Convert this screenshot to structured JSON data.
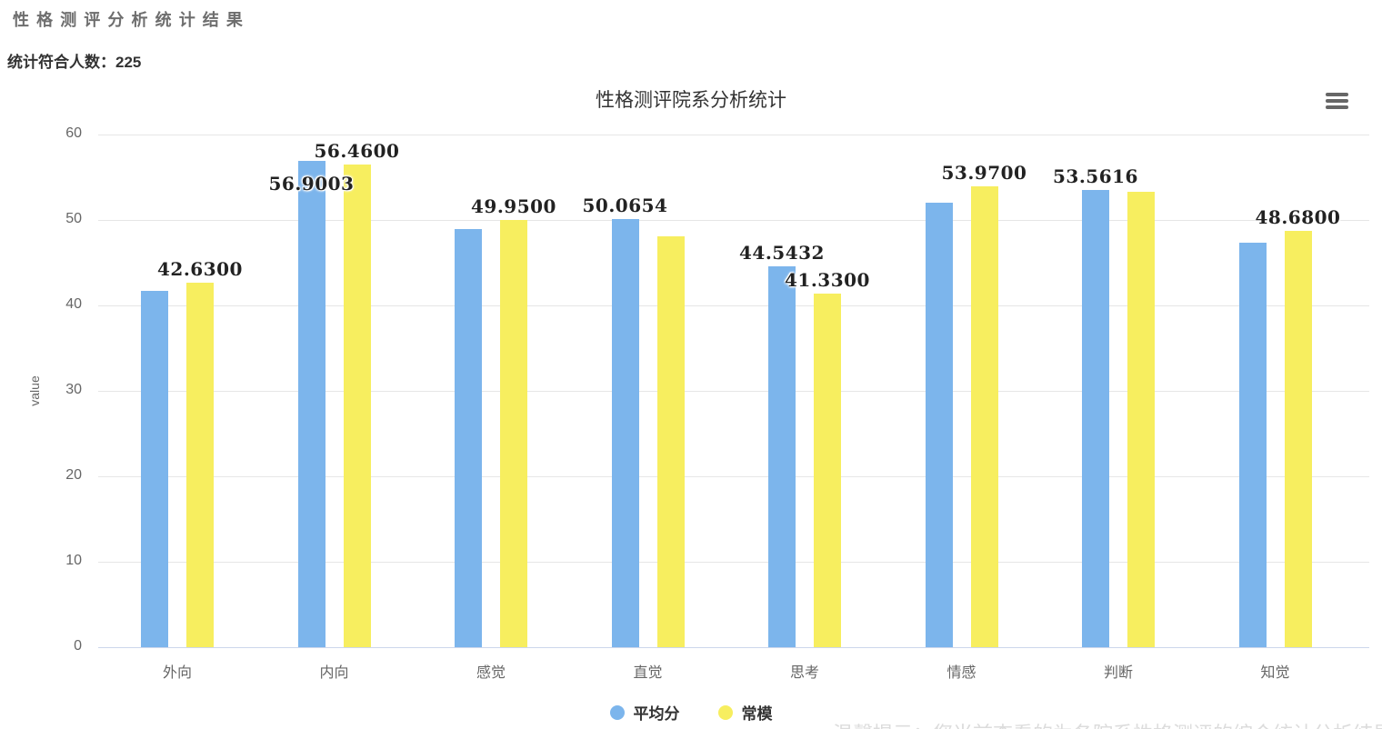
{
  "page": {
    "title": "性格测评分析统计结果",
    "subtitle": "统计符合人数：225"
  },
  "menu": {
    "icon": "hamburger-menu-icon"
  },
  "watermark": {
    "text": "温馨提示：您当前查看的为各院系性格测评的综合统计分析结果图表"
  },
  "chart_data": {
    "type": "bar",
    "title": "性格测评院系分析统计",
    "xlabel": "",
    "ylabel": "value",
    "ylim": [
      0,
      60
    ],
    "yticks": [
      0,
      10,
      20,
      30,
      40,
      50,
      60
    ],
    "grid": true,
    "legend_position": "bottom",
    "categories": [
      "外向",
      "内向",
      "感觉",
      "直觉",
      "思考",
      "情感",
      "判断",
      "知觉"
    ],
    "series": [
      {
        "name": "平均分",
        "color": "#7cb5ec",
        "values": [
          41.7,
          56.9003,
          48.89,
          50.0654,
          44.5432,
          52.06,
          53.5616,
          47.3
        ]
      },
      {
        "name": "常模",
        "color": "#f7ee5f",
        "values": [
          42.63,
          56.46,
          49.95,
          48.05,
          41.33,
          53.97,
          53.35,
          48.68
        ]
      }
    ],
    "data_labels": [
      {
        "series": 1,
        "index": 0,
        "text": "42.6300",
        "dy": 0
      },
      {
        "series": 0,
        "index": 1,
        "text": "56.9003",
        "dy": 40
      },
      {
        "series": 1,
        "index": 1,
        "text": "56.4600",
        "dy": 0
      },
      {
        "series": 1,
        "index": 2,
        "text": "49.9500",
        "dy": 0
      },
      {
        "series": 0,
        "index": 3,
        "text": "50.0654",
        "dy": 0
      },
      {
        "series": 0,
        "index": 4,
        "text": "44.5432",
        "dy": 0
      },
      {
        "series": 1,
        "index": 4,
        "text": "41.3300",
        "dy": 0
      },
      {
        "series": 1,
        "index": 5,
        "text": "53.9700",
        "dy": 0
      },
      {
        "series": 0,
        "index": 6,
        "text": "53.5616",
        "dy": 0
      },
      {
        "series": 1,
        "index": 7,
        "text": "48.6800",
        "dy": 0
      }
    ]
  }
}
